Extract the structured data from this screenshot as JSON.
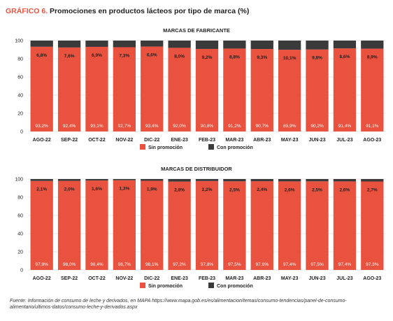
{
  "figure": {
    "label": "GRÁFICO 6.",
    "title": "Promociones en productos lácteos por tipo de marca (%)",
    "source": "Fuente: Información de consumo de leche y derivados, en MAPA https://www.mapa.gob.es/es/alimentacion/temas/consumo-tendencias/panel-de-consumo-alimentario/ultimos-datos/consumo-leche-y-derivados.aspx"
  },
  "colors": {
    "sin": "#e8523f",
    "con": "#3a3a3a",
    "grid": "#d0d0d0",
    "text": "#222222"
  },
  "chart_data": [
    {
      "type": "bar",
      "stacked": true,
      "title": "MARCAS DE FABRICANTE",
      "categories": [
        "AGO-22",
        "SEP-22",
        "OCT-22",
        "NOV-22",
        "DIC-22",
        "ENE-23",
        "FEB-23",
        "MAR-23",
        "ABR-23",
        "MAY-23",
        "JUN-23",
        "JUL-23",
        "AGO-23"
      ],
      "series": [
        {
          "name": "Sin promoción",
          "values": [
            93.2,
            92.4,
            93.1,
            92.7,
            93.4,
            92.0,
            90.8,
            91.2,
            90.7,
            89.9,
            90.2,
            91.4,
            91.1
          ],
          "labels": [
            "93,2%",
            "92,4%",
            "93,1%",
            "92,7%",
            "93,4%",
            "92,0%",
            "90,8%",
            "91,2%",
            "90,7%",
            "89,9%",
            "90,2%",
            "91,4%",
            "91,1%"
          ]
        },
        {
          "name": "Con promoción",
          "values": [
            6.8,
            7.6,
            6.9,
            7.3,
            6.6,
            8.0,
            9.2,
            8.8,
            9.3,
            10.1,
            9.8,
            8.6,
            8.9
          ],
          "labels": [
            "6,8%",
            "7,6%",
            "6,9%",
            "7,3%",
            "6,6%",
            "8,0%",
            "9,2%",
            "8,8%",
            "9,3%",
            "10,1%",
            "9,8%",
            "8,6%",
            "8,9%"
          ]
        }
      ],
      "yticks": [
        "0",
        "20",
        "40",
        "60",
        "80",
        "100"
      ],
      "ylim": [
        0,
        100
      ],
      "grid": true,
      "legend": "bottom"
    },
    {
      "type": "bar",
      "stacked": true,
      "title": "MARCAS DE DISTRIBUIDOR",
      "categories": [
        "AGO-22",
        "SEP-22",
        "OCT-22",
        "NOV-22",
        "DIC-22",
        "ENE-23",
        "FEB-23",
        "MAR-23",
        "ABR-23",
        "MAY-23",
        "JUN-23",
        "JUL-23",
        "AGO-23"
      ],
      "series": [
        {
          "name": "Sin promoción",
          "values": [
            97.9,
            98.0,
            98.4,
            98.7,
            98.1,
            97.2,
            97.8,
            97.5,
            97.6,
            97.4,
            97.5,
            97.4,
            97.3
          ],
          "labels": [
            "97,9%",
            "98,0%",
            "98,4%",
            "98,7%",
            "98,1%",
            "97,2%",
            "97,8%",
            "97,5%",
            "97,6%",
            "97,4%",
            "97,5%",
            "97,4%",
            "97,3%"
          ]
        },
        {
          "name": "Con promoción",
          "values": [
            2.1,
            2.0,
            1.6,
            1.3,
            1.9,
            2.8,
            2.2,
            2.5,
            2.4,
            2.6,
            2.5,
            2.6,
            2.7
          ],
          "labels": [
            "2,1%",
            "2,0%",
            "1,6%",
            "1,3%",
            "1,9%",
            "2,8%",
            "2,2%",
            "2,5%",
            "2,4%",
            "2,6%",
            "2,5%",
            "2,6%",
            "2,7%"
          ]
        }
      ],
      "yticks": [
        "0",
        "20",
        "40",
        "60",
        "80",
        "100"
      ],
      "ylim": [
        0,
        100
      ],
      "grid": true,
      "legend": "bottom"
    }
  ]
}
